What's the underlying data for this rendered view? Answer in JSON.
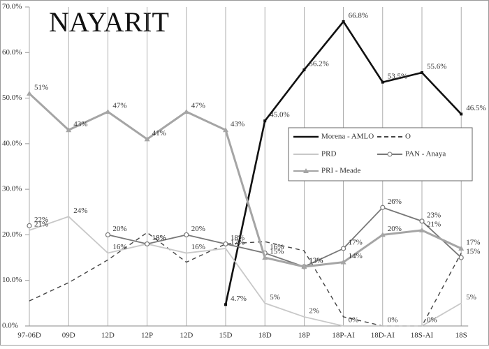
{
  "chart_data": {
    "type": "line",
    "title": "NAYARIT",
    "categories": [
      "97-06D",
      "09D",
      "12D",
      "12P",
      "12D",
      "15D",
      "18D",
      "18P",
      "18P-AI",
      "18D-AI",
      "18S-AI",
      "18S"
    ],
    "ylim": [
      0,
      70
    ],
    "yticks": [
      {
        "value": 0,
        "label": "0.0%"
      },
      {
        "value": 10,
        "label": "10.0%"
      },
      {
        "value": 20,
        "label": "20.0%"
      },
      {
        "value": 30,
        "label": "30.0%"
      },
      {
        "value": 40,
        "label": "40.0%"
      },
      {
        "value": 50,
        "label": "50.0%"
      },
      {
        "value": 60,
        "label": "60.0%"
      },
      {
        "value": 70,
        "label": "70.0%"
      }
    ],
    "grid": true,
    "series": [
      {
        "name": "Morena - AMLO",
        "color": "#111111",
        "values": [
          null,
          null,
          null,
          null,
          null,
          4.7,
          45.0,
          56.2,
          66.8,
          53.5,
          55.6,
          46.5
        ],
        "value_labels": [
          null,
          null,
          null,
          null,
          null,
          "4.7%",
          "45.0%",
          "56.2%",
          "66.8%",
          "53.5%",
          "55.6%",
          "46.5%"
        ]
      },
      {
        "name": "O",
        "color": "#444444",
        "dashed": true,
        "values": [
          5.5,
          9.5,
          14.5,
          20.5,
          14,
          18,
          18.5,
          16.5,
          2,
          0,
          0,
          16
        ]
      },
      {
        "name": "PRD",
        "color": "#c8c8c8",
        "values": [
          21,
          24,
          16,
          18,
          16,
          17,
          5,
          2,
          0,
          0,
          0,
          5
        ],
        "value_labels": [
          "21%",
          "24%",
          "16%",
          "18%",
          "16%",
          "17%",
          "5%",
          "2%",
          "0%",
          "0%",
          "0%",
          "5%"
        ]
      },
      {
        "name": "PAN - Anaya",
        "color": "#777777",
        "marker": "circle",
        "values": [
          22,
          null,
          20,
          18,
          20,
          18,
          16,
          13,
          17,
          26,
          23,
          15
        ],
        "value_labels": [
          "22%",
          null,
          "20%",
          "18%",
          "20%",
          "18%",
          "16%",
          "13%",
          "17%",
          "26%",
          "23%",
          "15%"
        ]
      },
      {
        "name": "PRI - Meade",
        "color": "#a5a5a5",
        "marker": "triangle",
        "values": [
          51,
          43,
          47,
          41,
          47,
          43,
          15,
          13,
          14,
          20,
          21,
          17
        ],
        "value_labels": [
          "51%",
          "43%",
          "47%",
          "41%",
          "47%",
          "43%",
          "15%",
          "13%",
          "14%",
          "20%",
          "21%",
          "17%"
        ]
      }
    ]
  }
}
